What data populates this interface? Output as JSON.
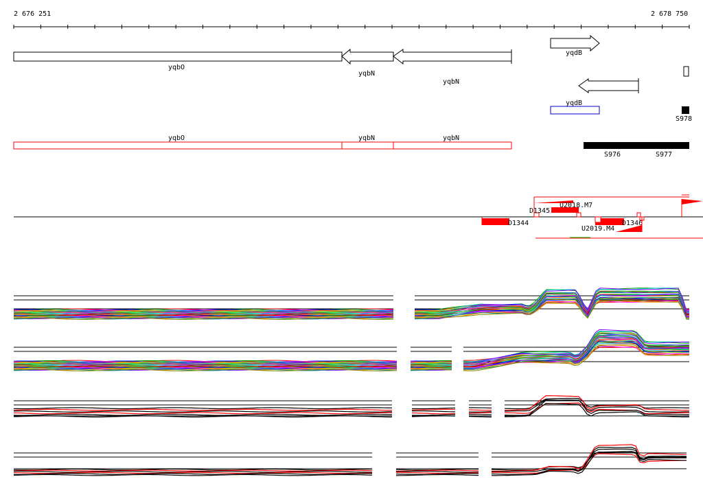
{
  "ruler": {
    "start_label": "2 676 251",
    "end_label": "2 678 750"
  },
  "colors": {
    "gene_outline": "#000000",
    "feature_red": "#ff0000",
    "feature_blue": "#0000cc",
    "track_line": "#000000",
    "green_accent": "#00bb00"
  },
  "genes_forward": [
    {
      "label": "yqdB"
    }
  ],
  "genes_reverse": [
    {
      "label": "yqbO"
    },
    {
      "label": "yqbN"
    },
    {
      "label": "yqbN"
    },
    {
      "label": "yqdB"
    }
  ],
  "gene_boxes": [
    {
      "label": "yqbO"
    },
    {
      "label": "yqbN"
    },
    {
      "label": "yqbN"
    }
  ],
  "small_rna": [
    {
      "label": "S976"
    },
    {
      "label": "S977"
    },
    {
      "label": "S978"
    }
  ],
  "tiling_features": [
    {
      "label": "U2018.M7"
    },
    {
      "label": "D1345"
    },
    {
      "label": "D1344"
    },
    {
      "label": "U2019.M4"
    },
    {
      "label": "D1346"
    }
  ],
  "tracks": [
    {
      "name": "multi-color-track-1"
    },
    {
      "name": "multi-color-track-2"
    },
    {
      "name": "red-black-track-1"
    },
    {
      "name": "red-black-track-2"
    }
  ]
}
